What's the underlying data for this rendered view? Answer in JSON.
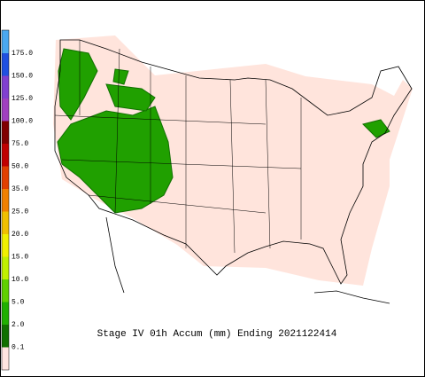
{
  "title": "Stage IV 01h Accum (mm) Ending 2021122414",
  "legend": {
    "labels": [
      "175.0",
      "150.0",
      "125.0",
      "100.0",
      "75.0",
      "50.0",
      "35.0",
      "25.0",
      "20.0",
      "15.0",
      "10.0",
      "5.0",
      "2.0",
      "0.1"
    ],
    "colors": [
      "#4aa8f0",
      "#2050e0",
      "#8040d0",
      "#a040c0",
      "#800000",
      "#c00000",
      "#e04000",
      "#f08000",
      "#f0c000",
      "#f0f000",
      "#c0f000",
      "#60d000",
      "#20b000",
      "#107000",
      "#ffe4e0"
    ]
  }
}
